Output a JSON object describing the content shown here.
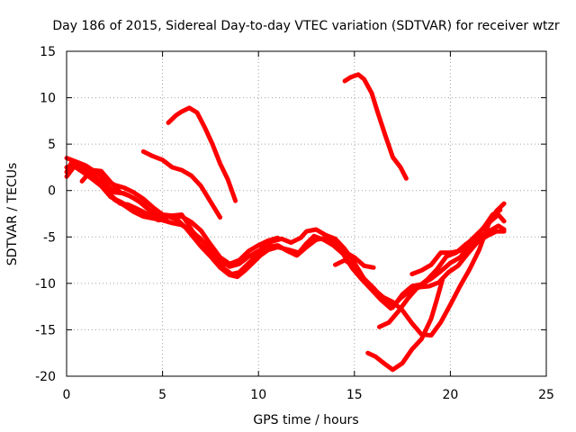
{
  "chart_data": {
    "type": "line",
    "title": "Day 186 of 2015, Sidereal Day-to-day VTEC variation (SDTVAR) for receiver wtzr",
    "xlabel": "GPS time / hours",
    "ylabel": "SDTVAR / TECUs",
    "xlim": [
      0,
      25
    ],
    "ylim": [
      -20,
      15
    ],
    "xticks": [
      0,
      5,
      10,
      15,
      20,
      25
    ],
    "yticks": [
      -20,
      -15,
      -10,
      -5,
      0,
      5,
      10,
      15
    ],
    "grid": true,
    "line_color": "#ff0000",
    "series": [
      {
        "name": "track-1",
        "points": [
          [
            0,
            2
          ],
          [
            0.3,
            3.2
          ],
          [
            0.7,
            2.5
          ],
          [
            1.2,
            2
          ],
          [
            1.6,
            1.2
          ],
          [
            2,
            0.8
          ],
          [
            2.5,
            -0.2
          ],
          [
            3,
            -0.3
          ],
          [
            3.5,
            -0.8
          ],
          [
            4,
            -1.5
          ],
          [
            4.5,
            -2.5
          ],
          [
            5,
            -2.8
          ],
          [
            5.5,
            -2.7
          ],
          [
            6,
            -2.6
          ],
          [
            6.3,
            -3.5
          ],
          [
            6.6,
            -4.5
          ],
          [
            7,
            -5.3
          ],
          [
            7.4,
            -6
          ],
          [
            7.8,
            -7.3
          ],
          [
            8.2,
            -8.4
          ],
          [
            8.6,
            -9
          ],
          [
            9,
            -8.8
          ],
          [
            9.4,
            -8
          ],
          [
            9.8,
            -7.2
          ],
          [
            10.2,
            -6.1
          ],
          [
            10.7,
            -5.5
          ],
          [
            11.2,
            -5.2
          ],
          [
            11.7,
            -5.6
          ],
          [
            12.2,
            -5.1
          ],
          [
            12.5,
            -4.4
          ],
          [
            13,
            -4.2
          ],
          [
            13.5,
            -4.8
          ],
          [
            14,
            -5.2
          ],
          [
            14.5,
            -6.3
          ],
          [
            15,
            -7.8
          ],
          [
            15.5,
            -9.5
          ],
          [
            16,
            -10.5
          ],
          [
            16.5,
            -11.7
          ],
          [
            17,
            -12.6
          ],
          [
            17.5,
            -11.2
          ],
          [
            18,
            -10.3
          ],
          [
            18.5,
            -10.1
          ],
          [
            19,
            -9.5
          ],
          [
            19.5,
            -8.7
          ],
          [
            20,
            -7.8
          ],
          [
            20.5,
            -7.2
          ],
          [
            21,
            -6.1
          ],
          [
            21.5,
            -5
          ],
          [
            22,
            -4.4
          ],
          [
            22.5,
            -3.8
          ],
          [
            22.8,
            -4.2
          ]
        ]
      },
      {
        "name": "track-2",
        "points": [
          [
            0,
            1.5
          ],
          [
            0.4,
            2.6
          ],
          [
            0.9,
            1.9
          ],
          [
            1.3,
            1.3
          ],
          [
            1.8,
            0.5
          ],
          [
            2.3,
            -0.7
          ],
          [
            2.8,
            -1.2
          ],
          [
            3.3,
            -1.8
          ],
          [
            3.8,
            -2.2
          ],
          [
            4.3,
            -2.6
          ],
          [
            4.8,
            -3
          ],
          [
            5.3,
            -2.8
          ],
          [
            5.8,
            -3.2
          ],
          [
            6.2,
            -4
          ],
          [
            6.6,
            -5
          ],
          [
            7,
            -6
          ],
          [
            7.5,
            -7.1
          ],
          [
            8,
            -8.3
          ],
          [
            8.5,
            -9.1
          ],
          [
            8.9,
            -9.3
          ],
          [
            9.3,
            -8.6
          ],
          [
            9.7,
            -7.8
          ],
          [
            10.1,
            -7
          ],
          [
            10.5,
            -6.4
          ],
          [
            11,
            -6.1
          ],
          [
            11.6,
            -6.4
          ],
          [
            12.1,
            -6.7
          ],
          [
            12.5,
            -5.7
          ],
          [
            12.9,
            -4.9
          ],
          [
            13.4,
            -5.3
          ],
          [
            13.9,
            -5.9
          ],
          [
            14.4,
            -6.8
          ],
          [
            14.9,
            -8.4
          ],
          [
            15.4,
            -9.6
          ],
          [
            15.9,
            -10.7
          ],
          [
            16.4,
            -11.8
          ],
          [
            16.9,
            -12.7
          ],
          [
            17.4,
            -11.6
          ],
          [
            17.9,
            -10.8
          ],
          [
            18.4,
            -10.4
          ],
          [
            18.9,
            -10.3
          ],
          [
            19.4,
            -9.9
          ],
          [
            19.9,
            -8.8
          ],
          [
            20.4,
            -8.1
          ],
          [
            20.9,
            -6.8
          ],
          [
            21.4,
            -5.6
          ],
          [
            21.9,
            -4.9
          ],
          [
            22.4,
            -4.4
          ],
          [
            22.8,
            -4.4
          ]
        ]
      },
      {
        "name": "track-3",
        "points": [
          [
            0,
            2.5
          ],
          [
            0.5,
            2.9
          ],
          [
            1,
            2.3
          ],
          [
            1.5,
            1.4
          ],
          [
            2,
            0.2
          ],
          [
            2.5,
            -1
          ],
          [
            3,
            -1.6
          ],
          [
            3.5,
            -2.3
          ],
          [
            4,
            -2.8
          ],
          [
            4.5,
            -3
          ],
          [
            5,
            -3.2
          ],
          [
            5.5,
            -3.5
          ],
          [
            6,
            -3.7
          ],
          [
            6.5,
            -4.4
          ],
          [
            7,
            -5.2
          ],
          [
            7.5,
            -6.6
          ],
          [
            8,
            -7.5
          ],
          [
            8.5,
            -8.2
          ],
          [
            9,
            -7.9
          ],
          [
            9.5,
            -7.1
          ],
          [
            10,
            -6.5
          ],
          [
            10.5,
            -6.1
          ],
          [
            11,
            -5.9
          ],
          [
            11.5,
            -6.5
          ],
          [
            12,
            -7
          ],
          [
            12.5,
            -6.1
          ],
          [
            13,
            -5.3
          ],
          [
            13.5,
            -5.1
          ],
          [
            14,
            -5.6
          ],
          [
            14.5,
            -6.6
          ],
          [
            15,
            -7.2
          ],
          [
            15.5,
            -8.1
          ],
          [
            16,
            -8.3
          ]
        ]
      },
      {
        "name": "track-4",
        "points": [
          [
            0,
            3.5
          ],
          [
            0.5,
            3.1
          ],
          [
            1,
            2.7
          ],
          [
            1.5,
            2
          ],
          [
            2,
            1.2
          ],
          [
            2.5,
            0.6
          ],
          [
            3,
            0.3
          ],
          [
            3.5,
            -0.2
          ],
          [
            4,
            -0.9
          ],
          [
            4.5,
            -1.8
          ],
          [
            5,
            -2.6
          ],
          [
            5.5,
            -2.7
          ],
          [
            6,
            -2.8
          ],
          [
            6.5,
            -3.4
          ],
          [
            7,
            -4.3
          ],
          [
            7.5,
            -5.8
          ],
          [
            8,
            -7.2
          ],
          [
            8.5,
            -7.9
          ],
          [
            9,
            -7.5
          ],
          [
            9.5,
            -6.5
          ],
          [
            10,
            -5.9
          ],
          [
            10.5,
            -5.4
          ],
          [
            11,
            -5.1
          ]
        ]
      },
      {
        "name": "track-5",
        "points": [
          [
            1.2,
            1.9
          ],
          [
            1.6,
            1.1
          ],
          [
            2,
            0.3
          ],
          [
            2.4,
            -0.7
          ],
          [
            2.8,
            -1.4
          ],
          [
            3.2,
            -1.5
          ],
          [
            3.6,
            -1.9
          ],
          [
            4,
            -2.3
          ],
          [
            4.4,
            -2.8
          ],
          [
            4.8,
            -3.2
          ],
          [
            5.2,
            -3
          ]
        ]
      },
      {
        "name": "track-6",
        "points": [
          [
            0.8,
            1
          ],
          [
            1.3,
            2.2
          ],
          [
            1.8,
            2.1
          ],
          [
            2.3,
            0.9
          ],
          [
            2.8,
            -0.2
          ],
          [
            3.3,
            -0.6
          ],
          [
            3.8,
            -1.2
          ],
          [
            4.3,
            -2.1
          ],
          [
            4.9,
            -2.4
          ]
        ]
      },
      {
        "name": "track-7",
        "points": [
          [
            4,
            4.2
          ],
          [
            4.5,
            3.7
          ],
          [
            5,
            3.3
          ],
          [
            5.5,
            2.5
          ],
          [
            6,
            2.2
          ],
          [
            6.5,
            1.6
          ],
          [
            7,
            0.5
          ],
          [
            7.5,
            -1.2
          ],
          [
            8,
            -2.9
          ]
        ]
      },
      {
        "name": "track-8",
        "points": [
          [
            5.3,
            7.3
          ],
          [
            5.7,
            8.1
          ],
          [
            6,
            8.5
          ],
          [
            6.4,
            8.9
          ],
          [
            6.8,
            8.4
          ],
          [
            7.2,
            6.8
          ],
          [
            7.6,
            5
          ],
          [
            8,
            2.9
          ],
          [
            8.4,
            1.2
          ],
          [
            8.8,
            -1.1
          ]
        ]
      },
      {
        "name": "track-9",
        "points": [
          [
            14.5,
            11.8
          ],
          [
            14.8,
            12.2
          ],
          [
            15.2,
            12.5
          ],
          [
            15.5,
            12
          ],
          [
            15.9,
            10.5
          ],
          [
            16.2,
            8.5
          ],
          [
            16.6,
            6
          ],
          [
            17,
            3.6
          ],
          [
            17.4,
            2.5
          ],
          [
            17.7,
            1.3
          ]
        ]
      },
      {
        "name": "track-10",
        "points": [
          [
            14,
            -8
          ],
          [
            14.5,
            -7.5
          ],
          [
            15,
            -8.2
          ],
          [
            15.5,
            -9.5
          ],
          [
            16,
            -10.6
          ],
          [
            16.5,
            -11.5
          ],
          [
            17,
            -12
          ],
          [
            17.5,
            -12.9
          ],
          [
            18,
            -14.3
          ],
          [
            18.5,
            -15.5
          ],
          [
            19,
            -15.6
          ],
          [
            19.5,
            -14.2
          ],
          [
            20,
            -12.3
          ],
          [
            20.5,
            -10.3
          ],
          [
            21,
            -8.5
          ],
          [
            21.5,
            -6.4
          ],
          [
            22,
            -3.6
          ],
          [
            22.4,
            -2.2
          ],
          [
            22.8,
            -1.4
          ]
        ]
      },
      {
        "name": "track-11",
        "points": [
          [
            15.7,
            -17.5
          ],
          [
            16.1,
            -17.9
          ],
          [
            16.6,
            -18.7
          ],
          [
            17,
            -19.3
          ],
          [
            17.5,
            -18.6
          ],
          [
            18,
            -17.1
          ],
          [
            18.5,
            -16
          ],
          [
            19,
            -13.8
          ],
          [
            19.3,
            -11.7
          ],
          [
            19.6,
            -9.5
          ]
        ]
      },
      {
        "name": "track-12",
        "points": [
          [
            16.3,
            -14.7
          ],
          [
            16.8,
            -14.2
          ],
          [
            17.3,
            -13
          ],
          [
            17.8,
            -11.6
          ],
          [
            18.3,
            -10.4
          ],
          [
            18.8,
            -9.6
          ],
          [
            19.3,
            -8.5
          ],
          [
            19.8,
            -7.1
          ],
          [
            20.3,
            -6.7
          ],
          [
            20.8,
            -5.8
          ],
          [
            21.3,
            -5.1
          ],
          [
            21.8,
            -3.8
          ],
          [
            22.2,
            -2.6
          ],
          [
            22.6,
            -2.1
          ]
        ]
      },
      {
        "name": "track-13",
        "points": [
          [
            18,
            -9
          ],
          [
            18.5,
            -8.6
          ],
          [
            19,
            -8
          ],
          [
            19.5,
            -6.7
          ],
          [
            20,
            -6.7
          ],
          [
            20.5,
            -6.5
          ],
          [
            21,
            -5.5
          ],
          [
            21.5,
            -4.5
          ],
          [
            22,
            -3.5
          ],
          [
            22.5,
            -2.6
          ],
          [
            22.8,
            -3.3
          ]
        ]
      }
    ]
  }
}
